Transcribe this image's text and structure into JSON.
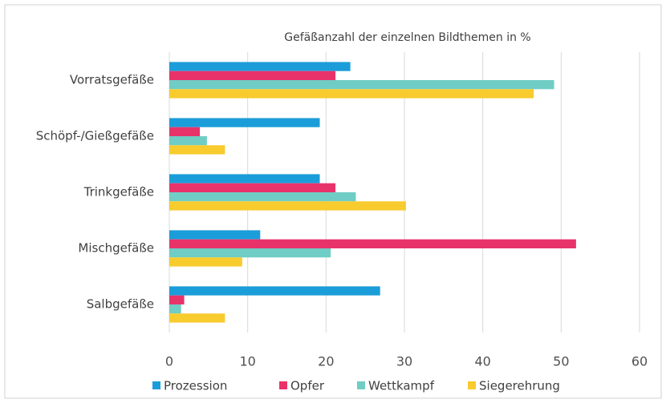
{
  "chart_data": {
    "type": "bar",
    "orientation": "horizontal",
    "title": "Gefäßanzahl der einzelnen Bildthemen in %",
    "categories": [
      "Vorratsgefäße",
      "Schöpf-/Gießgefäße",
      "Trinkgefäße",
      "Mischgefäße",
      "Salbgefäße"
    ],
    "series": [
      {
        "name": "Prozession",
        "color": "#1b9dd9",
        "values": [
          23.1,
          19.2,
          19.2,
          11.6,
          26.9
        ]
      },
      {
        "name": "Opfer",
        "color": "#e8336a",
        "values": [
          21.2,
          3.9,
          21.2,
          51.9,
          1.9
        ]
      },
      {
        "name": "Wettkampf",
        "color": "#6fcdc5",
        "values": [
          49.1,
          4.8,
          23.8,
          20.6,
          1.5
        ]
      },
      {
        "name": "Siegerehrung",
        "color": "#f8cb2e",
        "values": [
          46.5,
          7.1,
          30.2,
          9.3,
          7.1
        ]
      }
    ],
    "xlim": [
      0,
      60
    ],
    "xticks": [
      0,
      10,
      20,
      30,
      40,
      50,
      60
    ],
    "grid": true,
    "legend": "bottom"
  }
}
